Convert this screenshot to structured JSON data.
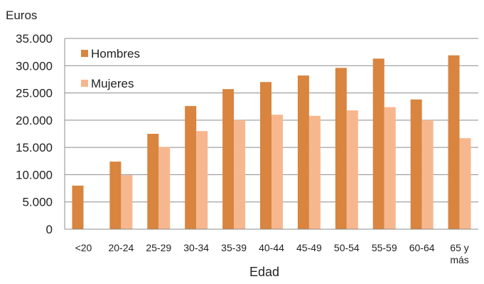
{
  "chart_data": {
    "type": "bar",
    "unit_label": "Euros",
    "xlabel": "Edad",
    "ylabel": "",
    "ylim": [
      0,
      35000
    ],
    "y_ticks": [
      {
        "value": 0,
        "label": "0"
      },
      {
        "value": 5000,
        "label": "5.000"
      },
      {
        "value": 10000,
        "label": "10.000"
      },
      {
        "value": 15000,
        "label": "15.000"
      },
      {
        "value": 20000,
        "label": "20.000"
      },
      {
        "value": 25000,
        "label": "25.000"
      },
      {
        "value": 30000,
        "label": "30.000"
      },
      {
        "value": 35000,
        "label": "35.000"
      }
    ],
    "grid": true,
    "legend_position": "top-left",
    "categories": [
      [
        "<20"
      ],
      [
        "20-24"
      ],
      [
        "25-29"
      ],
      [
        "30-34"
      ],
      [
        "35-39"
      ],
      [
        "40-44"
      ],
      [
        "45-49"
      ],
      [
        "50-54"
      ],
      [
        "55-59"
      ],
      [
        "60-64"
      ],
      [
        "65 y",
        "más"
      ]
    ],
    "series": [
      {
        "name": "Hombres",
        "color": "#d9843f",
        "values": [
          8000,
          12400,
          17500,
          22600,
          25700,
          27000,
          28200,
          29600,
          31300,
          23800,
          31900
        ]
      },
      {
        "name": "Mujeres",
        "color": "#f7b78e",
        "values": [
          null,
          9900,
          15100,
          18000,
          20000,
          21000,
          20800,
          21800,
          22400,
          20000,
          16700
        ]
      }
    ]
  }
}
